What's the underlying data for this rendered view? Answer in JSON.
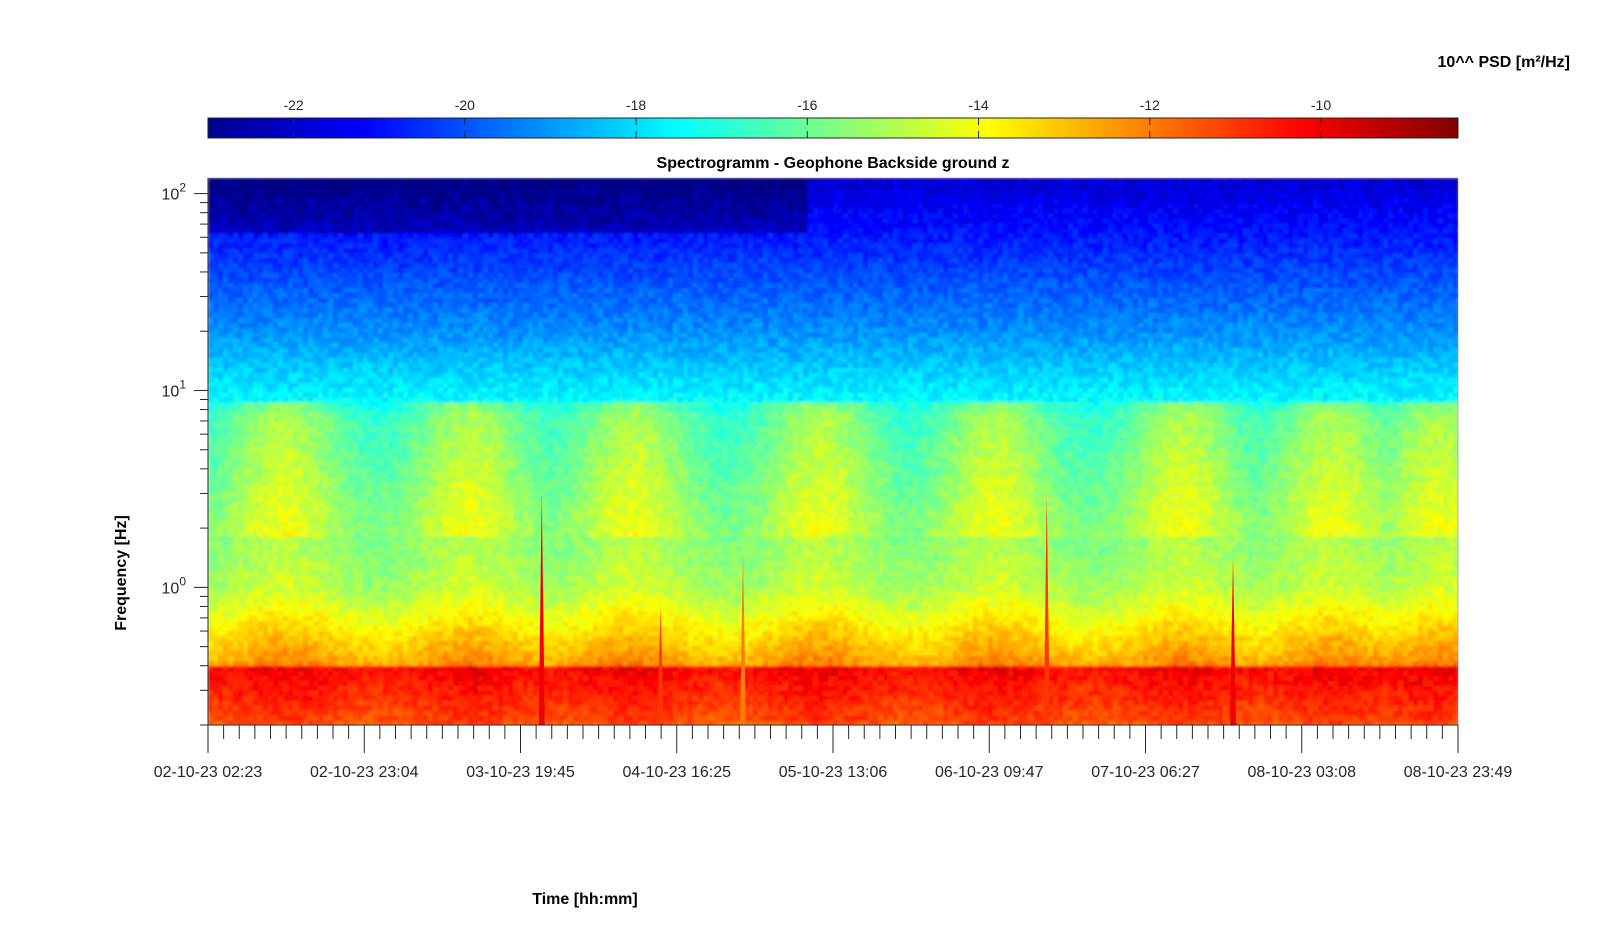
{
  "chart_data": {
    "type": "heatmap",
    "title": "Spectrogramm - Geophone Backside ground z",
    "xlabel": "Time [hh:mm]",
    "ylabel": "Frequency [Hz]",
    "y_scale": "log",
    "ylim": [
      0.2,
      120
    ],
    "y_ticks": [
      {
        "value": 1,
        "base": "10",
        "exp": "0"
      },
      {
        "value": 10,
        "base": "10",
        "exp": "1"
      },
      {
        "value": 100,
        "base": "10",
        "exp": "2"
      }
    ],
    "x_ticks": [
      "02-10-23 02:23",
      "02-10-23 23:04",
      "03-10-23 19:45",
      "04-10-23 16:25",
      "05-10-23 13:06",
      "06-10-23 09:47",
      "07-10-23 06:27",
      "08-10-23 03:08",
      "08-10-23 23:49"
    ],
    "grid": false,
    "colorbar": {
      "label": "10^^ PSD [m²/Hz]",
      "location": "top",
      "range": [
        -23,
        -8.4
      ],
      "colormap": "jet",
      "ticks": [
        "-22",
        "-20",
        "-18",
        "-16",
        "-14",
        "-12",
        "-10"
      ]
    },
    "transient_events": [
      {
        "time": "03-10-23 ~09:00",
        "max_freq_hz": 3.0,
        "level": -10
      },
      {
        "time": "04-10-23 ~07:00",
        "max_freq_hz": 0.8,
        "level": -11
      },
      {
        "time": "04-10-23 ~21:00",
        "max_freq_hz": 1.5,
        "level": -12
      },
      {
        "time": "06-10-23 ~19:00",
        "max_freq_hz": 3.0,
        "level": -11
      },
      {
        "time": "07-10-23 ~19:00",
        "max_freq_hz": 1.4,
        "level": -10
      }
    ]
  }
}
